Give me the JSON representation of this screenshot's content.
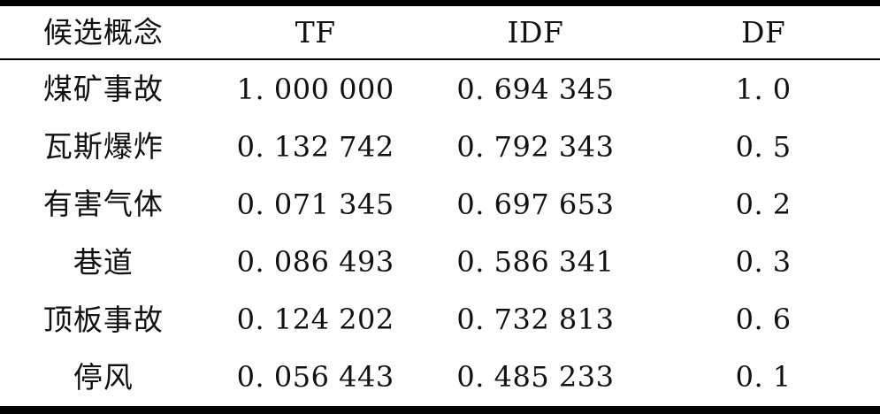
{
  "table": {
    "columns": [
      "候选概念",
      "TF",
      "IDF",
      "DF"
    ],
    "rows": [
      [
        "煤矿事故",
        "1. 000 000",
        "0. 694 345",
        "1. 0"
      ],
      [
        "瓦斯爆炸",
        "0. 132 742",
        "0. 792 343",
        "0. 5"
      ],
      [
        "有害气体",
        "0. 071 345",
        "0. 697 653",
        "0. 2"
      ],
      [
        "巷道",
        "0. 086 493",
        "0. 586 341",
        "0. 3"
      ],
      [
        "顶板事故",
        "0. 124 202",
        "0. 732 813",
        "0. 6"
      ],
      [
        "停风",
        "0. 056 443",
        "0. 485 233",
        "0. 1"
      ]
    ],
    "colors": {
      "text": "#111111",
      "rule": "#000000",
      "background": "#ffffff"
    }
  }
}
